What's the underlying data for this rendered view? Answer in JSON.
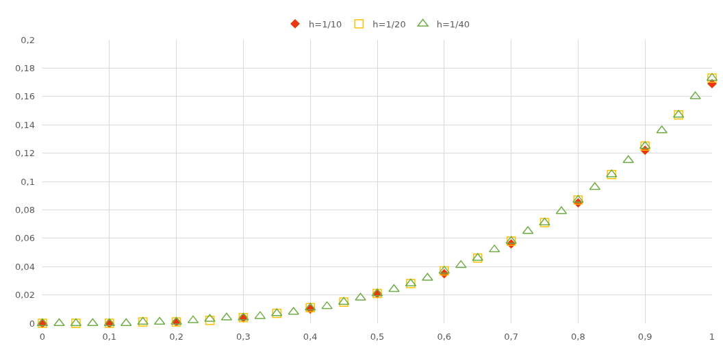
{
  "chart_data": {
    "type": "scatter",
    "legend": "top",
    "grid": true,
    "xlim": [
      0,
      1
    ],
    "ylim": [
      0,
      0.2
    ],
    "xticks": [
      0,
      {
        "value": 0.1,
        "label": "0,1"
      },
      {
        "value": 0.2,
        "label": "0,2"
      },
      {
        "value": 0.3,
        "label": "0,3"
      },
      {
        "value": 0.4,
        "label": "0,4"
      },
      {
        "value": 0.5,
        "label": "0,5"
      },
      {
        "value": 0.6,
        "label": "0,6"
      },
      {
        "value": 0.7,
        "label": "0,7"
      },
      {
        "value": 0.8,
        "label": "0,8"
      },
      {
        "value": 0.9,
        "label": "0,9"
      },
      1
    ],
    "yticks": [
      0,
      {
        "value": 0.02,
        "label": "0,02"
      },
      {
        "value": 0.04,
        "label": "0,04"
      },
      {
        "value": 0.06,
        "label": "0,06"
      },
      {
        "value": 0.08,
        "label": "0,08"
      },
      {
        "value": 0.1,
        "label": "0,1"
      },
      {
        "value": 0.12,
        "label": "0,12"
      },
      {
        "value": 0.14,
        "label": "0,14"
      },
      {
        "value": 0.16,
        "label": "0,16"
      },
      {
        "value": 0.18,
        "label": "0,18"
      },
      {
        "value": 0.2,
        "label": "0,2"
      }
    ],
    "series": [
      {
        "name": "h=1/10",
        "color": "#e8380d",
        "marker": "diamond",
        "x": [
          0,
          0.1,
          0.2,
          0.3,
          0.4,
          0.5,
          0.6,
          0.7,
          0.8,
          0.9,
          1
        ],
        "values": [
          0,
          0,
          0.001,
          0.004,
          0.01,
          0.021,
          0.035,
          0.056,
          0.085,
          0.122,
          0.169
        ]
      },
      {
        "name": "h=1/20",
        "color": "#ffc000",
        "marker": "square",
        "x": [
          0,
          0.05,
          0.1,
          0.15,
          0.2,
          0.25,
          0.3,
          0.35,
          0.4,
          0.45,
          0.5,
          0.55,
          0.6,
          0.65,
          0.7,
          0.75,
          0.8,
          0.85,
          0.9,
          0.95,
          1
        ],
        "values": [
          0,
          0,
          0,
          0.001,
          0.001,
          0.002,
          0.004,
          0.007,
          0.011,
          0.015,
          0.021,
          0.028,
          0.037,
          0.046,
          0.058,
          0.071,
          0.087,
          0.105,
          0.125,
          0.147,
          0.173
        ]
      },
      {
        "name": "h=1/40",
        "color": "#70ad47",
        "marker": "triangle",
        "x": [
          0,
          0.025,
          0.05,
          0.075,
          0.1,
          0.125,
          0.15,
          0.175,
          0.2,
          0.225,
          0.25,
          0.275,
          0.3,
          0.325,
          0.35,
          0.375,
          0.4,
          0.425,
          0.45,
          0.475,
          0.5,
          0.525,
          0.55,
          0.575,
          0.6,
          0.625,
          0.65,
          0.675,
          0.7,
          0.725,
          0.75,
          0.775,
          0.8,
          0.825,
          0.85,
          0.875,
          0.9,
          0.925,
          0.95,
          0.975,
          1
        ],
        "values": [
          0,
          0,
          0,
          0,
          0,
          0,
          0.001,
          0.001,
          0.001,
          0.002,
          0.003,
          0.004,
          0.004,
          0.005,
          0.007,
          0.008,
          0.011,
          0.012,
          0.015,
          0.018,
          0.021,
          0.024,
          0.028,
          0.032,
          0.037,
          0.041,
          0.046,
          0.052,
          0.058,
          0.065,
          0.071,
          0.079,
          0.087,
          0.096,
          0.105,
          0.115,
          0.125,
          0.136,
          0.147,
          0.16,
          0.173
        ]
      }
    ]
  }
}
